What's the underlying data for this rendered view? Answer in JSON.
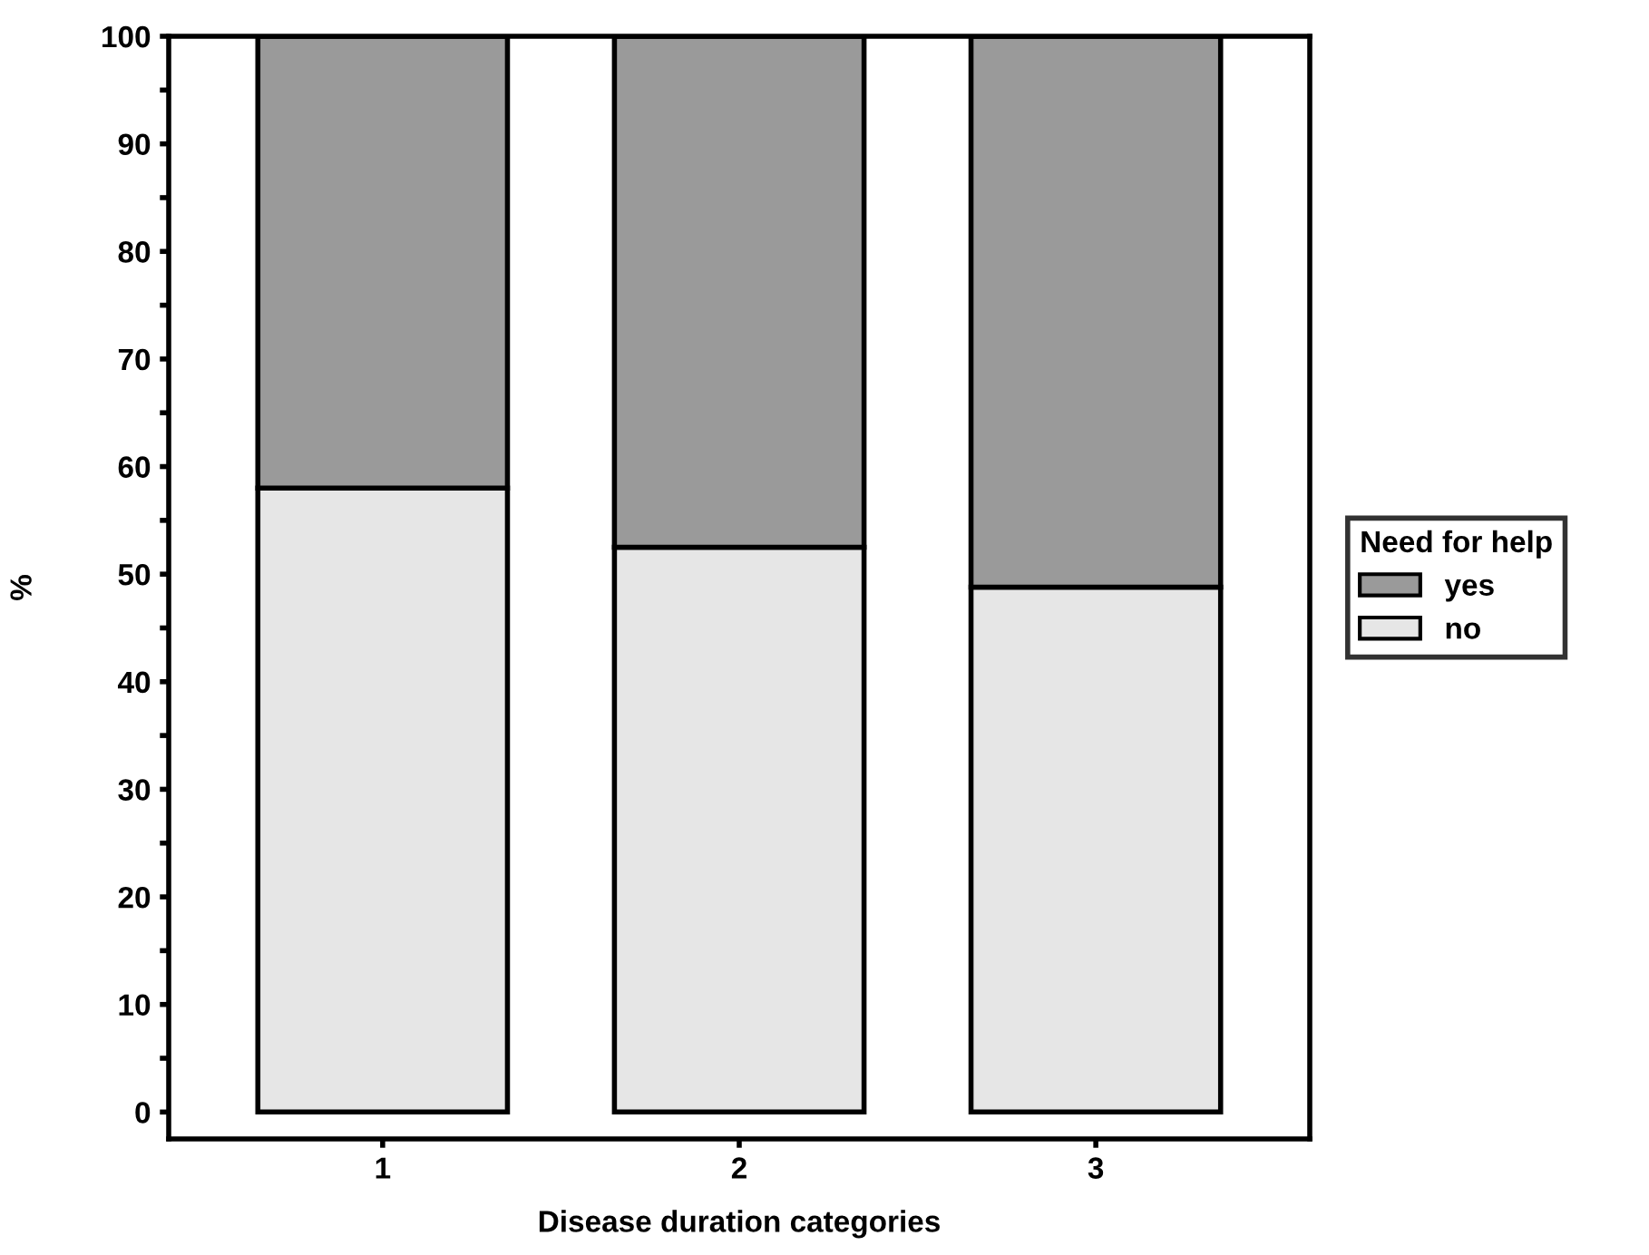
{
  "chart_data": {
    "type": "bar",
    "stacked": true,
    "xlabel": "Disease duration categories",
    "ylabel": "%",
    "legend_title": "Need for help",
    "legend": "right",
    "categories": [
      "1",
      "2",
      "3"
    ],
    "series": [
      {
        "name": "no",
        "color": "#e6e6e6",
        "values": [
          58,
          52.5,
          48.8
        ]
      },
      {
        "name": "yes",
        "color": "#9a9a9a",
        "values": [
          42,
          47.5,
          51.2
        ]
      }
    ],
    "ylim": [
      -2.5,
      100
    ],
    "yticks": [
      0,
      {
        "value": 5,
        "label": null
      },
      10,
      {
        "value": 15,
        "label": null
      },
      20,
      {
        "value": 25,
        "label": null
      },
      30,
      {
        "value": 35,
        "label": null
      },
      40,
      {
        "value": 45,
        "label": null
      },
      50,
      {
        "value": 55,
        "label": null
      },
      60,
      {
        "value": 65,
        "label": null
      },
      70,
      {
        "value": 75,
        "label": null
      },
      80,
      {
        "value": 85,
        "label": null
      },
      90,
      {
        "value": 95,
        "label": null
      },
      100
    ],
    "grid": false
  }
}
